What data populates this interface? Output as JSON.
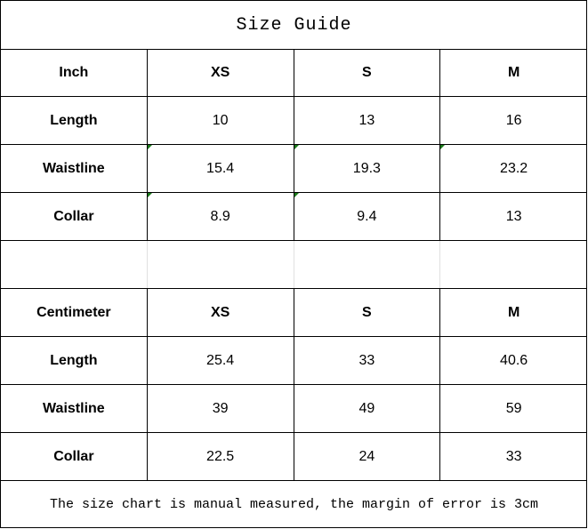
{
  "title": "Size Guide",
  "inch_table": {
    "header": [
      "Inch",
      "XS",
      "S",
      "M"
    ],
    "rows": [
      [
        "Length",
        "10",
        "13",
        "16"
      ],
      [
        "Waistline",
        "15.4",
        "19.3",
        "23.2"
      ],
      [
        "Collar",
        "8.9",
        "9.4",
        "13"
      ]
    ]
  },
  "cm_table": {
    "header": [
      "Centimeter",
      "XS",
      "S",
      "M"
    ],
    "rows": [
      [
        "Length",
        "25.4",
        "33",
        "40.6"
      ],
      [
        "Waistline",
        "39",
        "49",
        "59"
      ],
      [
        "Collar",
        "22.5",
        "24",
        "33"
      ]
    ]
  },
  "footer": "The size chart is manual measured, the margin of error is 3cm",
  "colors": {
    "grid": "#000000",
    "blank_grid": "#e0e0e0",
    "error_indicator": "#1a7a1a"
  }
}
